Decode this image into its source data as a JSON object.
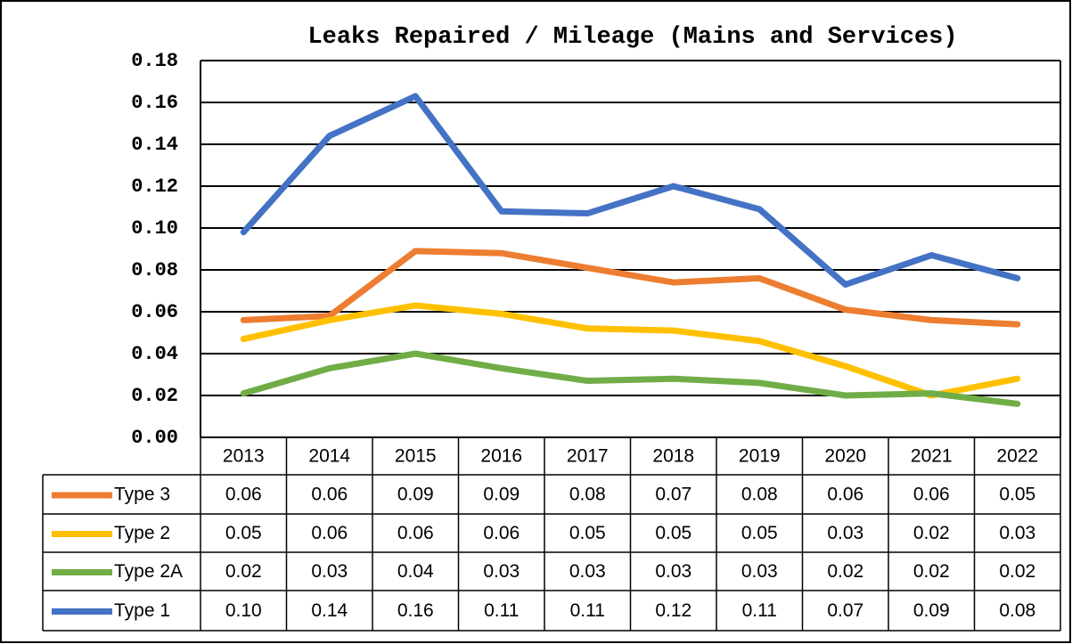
{
  "chart_data": {
    "type": "line",
    "title": "Leaks Repaired / Mileage (Mains and Services)",
    "categories": [
      "2013",
      "2014",
      "2015",
      "2016",
      "2017",
      "2018",
      "2019",
      "2020",
      "2021",
      "2022"
    ],
    "series": [
      {
        "name": "Type 3",
        "color": "#ed7d31",
        "values": [
          0.056,
          0.058,
          0.089,
          0.088,
          0.081,
          0.074,
          0.076,
          0.061,
          0.056,
          0.054
        ],
        "value_labels": [
          "0.06",
          "0.06",
          "0.09",
          "0.09",
          "0.08",
          "0.07",
          "0.08",
          "0.06",
          "0.06",
          "0.05"
        ]
      },
      {
        "name": "Type 2",
        "color": "#ffc000",
        "values": [
          0.047,
          0.056,
          0.063,
          0.059,
          0.052,
          0.051,
          0.046,
          0.034,
          0.02,
          0.028
        ],
        "value_labels": [
          "0.05",
          "0.06",
          "0.06",
          "0.06",
          "0.05",
          "0.05",
          "0.05",
          "0.03",
          "0.02",
          "0.03"
        ]
      },
      {
        "name": "Type 2A",
        "color": "#70ad47",
        "values": [
          0.021,
          0.033,
          0.04,
          0.033,
          0.027,
          0.028,
          0.026,
          0.02,
          0.021,
          0.016
        ],
        "value_labels": [
          "0.02",
          "0.03",
          "0.04",
          "0.03",
          "0.03",
          "0.03",
          "0.03",
          "0.02",
          "0.02",
          "0.02"
        ]
      },
      {
        "name": "Type 1",
        "color": "#4472c4",
        "values": [
          0.098,
          0.144,
          0.163,
          0.108,
          0.107,
          0.12,
          0.109,
          0.073,
          0.087,
          0.076
        ],
        "value_labels": [
          "0.10",
          "0.14",
          "0.16",
          "0.11",
          "0.11",
          "0.12",
          "0.11",
          "0.07",
          "0.09",
          "0.08"
        ]
      }
    ],
    "ylim": [
      0,
      0.18
    ],
    "yticks": [
      {
        "value": 0,
        "label": "0.00"
      },
      {
        "value": 0.02,
        "label": "0.02"
      },
      {
        "value": 0.04,
        "label": "0.04"
      },
      {
        "value": 0.06,
        "label": "0.06"
      },
      {
        "value": 0.08,
        "label": "0.08"
      },
      {
        "value": 0.1,
        "label": "0.10"
      },
      {
        "value": 0.12,
        "label": "0.12"
      },
      {
        "value": 0.14,
        "label": "0.14"
      },
      {
        "value": 0.16,
        "label": "0.16"
      },
      {
        "value": 0.18,
        "label": "0.18"
      }
    ],
    "grid": true
  }
}
